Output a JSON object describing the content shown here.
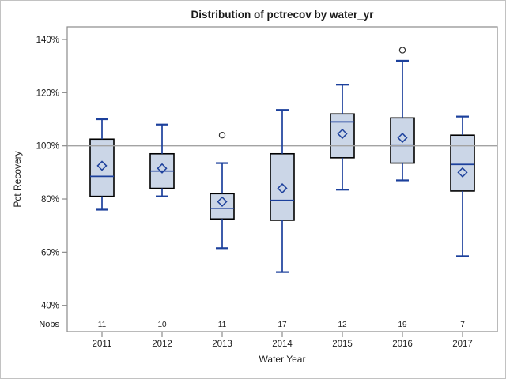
{
  "chart_data": {
    "type": "boxplot",
    "title": "Distribution of pctrecov by water_yr",
    "xlabel": "Water Year",
    "ylabel": "Pct Recovery",
    "nobs_label": "Nobs",
    "categories": [
      "2011",
      "2012",
      "2013",
      "2014",
      "2015",
      "2016",
      "2017"
    ],
    "nobs": [
      11,
      10,
      11,
      17,
      12,
      19,
      7
    ],
    "yticks": [
      40,
      60,
      80,
      100,
      120,
      140
    ],
    "ytick_suffix": "%",
    "ylim": [
      30,
      145
    ],
    "refline": 100,
    "grid": "off",
    "legend": "none",
    "series": [
      {
        "category": "2011",
        "n": 11,
        "low": 76,
        "q1": 81,
        "median": 88.5,
        "q3": 102.5,
        "high": 110,
        "mean": 92.5,
        "outliers": []
      },
      {
        "category": "2012",
        "n": 10,
        "low": 81,
        "q1": 84,
        "median": 90.5,
        "q3": 97,
        "high": 108,
        "mean": 91.5,
        "outliers": []
      },
      {
        "category": "2013",
        "n": 11,
        "low": 61.5,
        "q1": 72.5,
        "median": 76.5,
        "q3": 82,
        "high": 93.5,
        "mean": 79,
        "outliers": [
          104
        ]
      },
      {
        "category": "2014",
        "n": 17,
        "low": 52.5,
        "q1": 72,
        "median": 79.5,
        "q3": 97,
        "high": 113.5,
        "mean": 84,
        "outliers": []
      },
      {
        "category": "2015",
        "n": 12,
        "low": 83.5,
        "q1": 95.5,
        "median": 109,
        "q3": 112,
        "high": 123,
        "mean": 104.5,
        "outliers": []
      },
      {
        "category": "2016",
        "n": 19,
        "low": 87,
        "q1": 93.5,
        "median": 100,
        "q3": 110.5,
        "high": 132,
        "mean": 103,
        "outliers": [
          136
        ]
      },
      {
        "category": "2017",
        "n": 7,
        "low": 58.5,
        "q1": 83,
        "median": 93,
        "q3": 104,
        "high": 111,
        "mean": 90,
        "outliers": []
      }
    ],
    "colors": {
      "box_fill": "#cbd6e7",
      "box_border": "#000000",
      "line": "#1c409c",
      "refline": "#a3a3a3",
      "frame": "#8b8b8b",
      "outlier": "#2f2f2f",
      "text": "#202020"
    }
  }
}
